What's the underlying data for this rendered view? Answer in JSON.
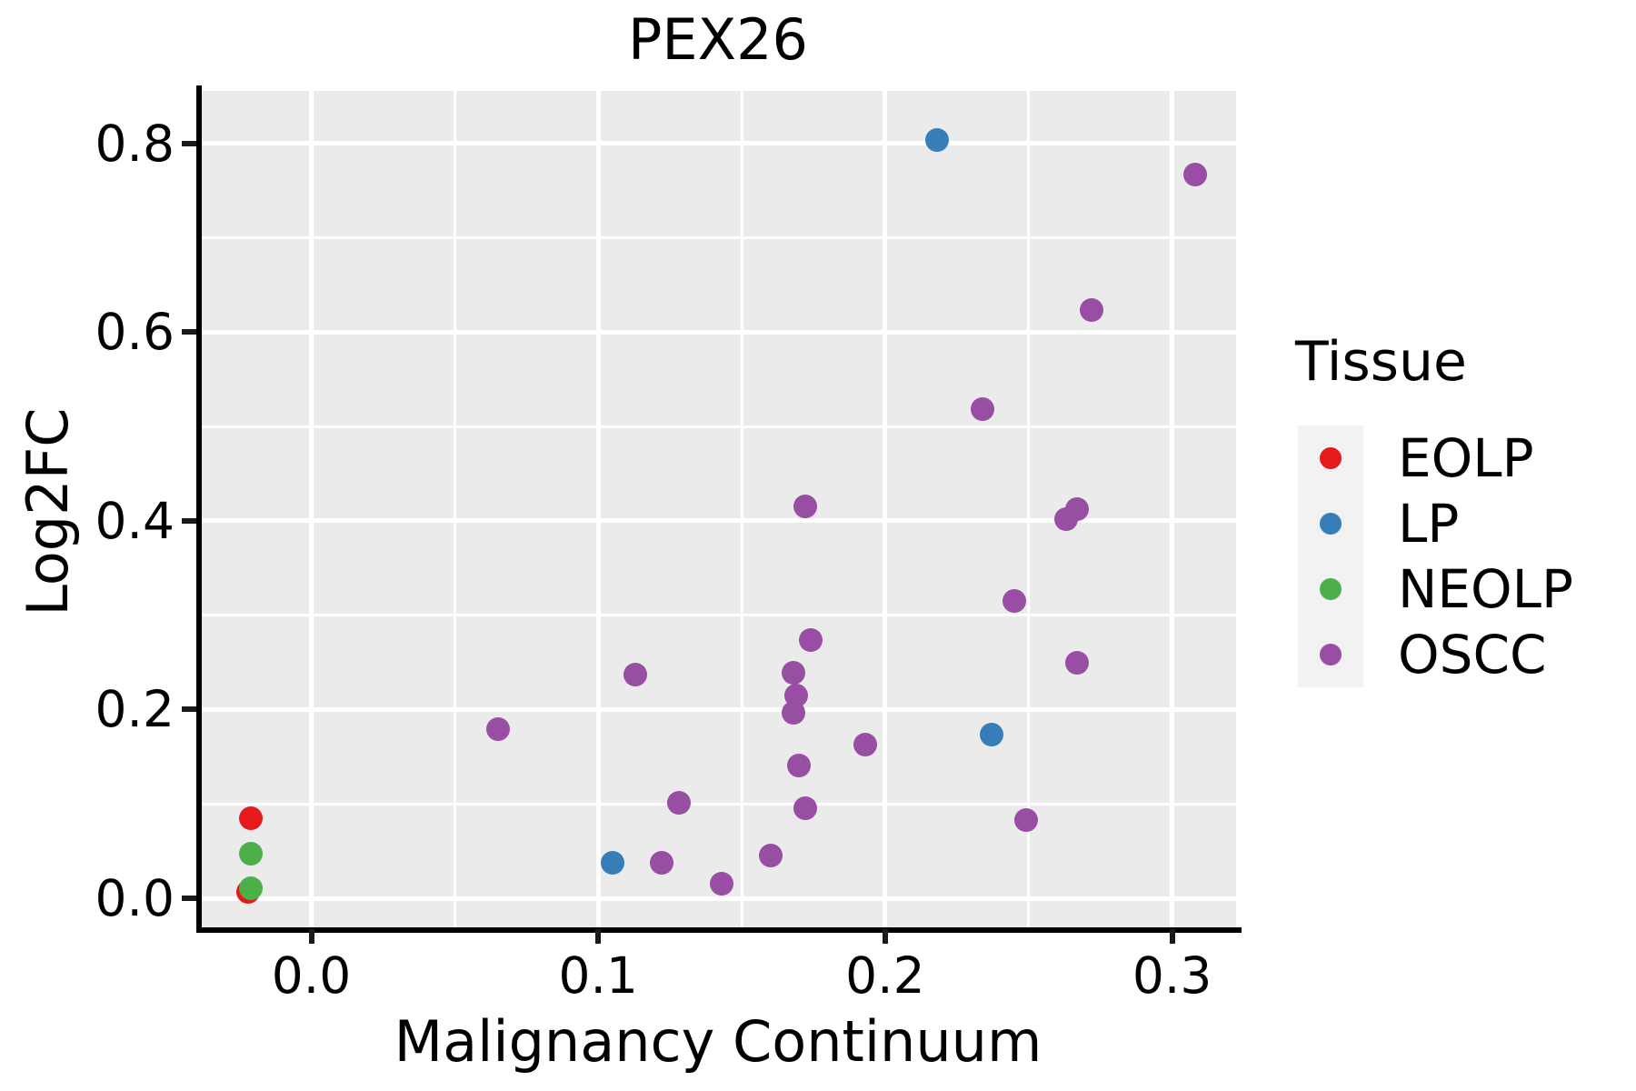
{
  "title": "PEX26",
  "legend": {
    "title": "Tissue",
    "entries": [
      {
        "label": "EOLP",
        "color": "#E41A1C"
      },
      {
        "label": "LP",
        "color": "#377EB8"
      },
      {
        "label": "NEOLP",
        "color": "#4DAF4A"
      },
      {
        "label": "OSCC",
        "color": "#984EA3"
      }
    ]
  },
  "colors": {
    "panel_background": "#EBEBEB",
    "gridline": "#FFFFFF",
    "axis": "#000000",
    "legend_key_background": "#F2F2F2",
    "text": "#000000"
  },
  "chart_data": {
    "type": "scatter",
    "title": "PEX26",
    "xlabel": "Malignancy Continuum",
    "ylabel": "Log2FC",
    "legend_title": "Tissue",
    "legend_position": "right",
    "grid": true,
    "xlim": [
      -0.038,
      0.322
    ],
    "ylim": [
      -0.03,
      0.856
    ],
    "x_ticks": [
      0.0,
      0.1,
      0.2,
      0.3
    ],
    "x_tick_labels": [
      "0.0",
      "0.1",
      "0.2",
      "0.3"
    ],
    "x_minor_ticks": [
      0.05,
      0.15,
      0.25
    ],
    "y_ticks": [
      0.0,
      0.2,
      0.4,
      0.6,
      0.8
    ],
    "y_tick_labels": [
      "0.0",
      "0.2",
      "0.4",
      "0.6",
      "0.8"
    ],
    "y_minor_ticks": [
      0.1,
      0.3,
      0.5,
      0.7
    ],
    "series": [
      {
        "name": "EOLP",
        "color": "#E41A1C",
        "points": [
          [
            -0.021,
            0.085
          ],
          [
            -0.022,
            0.007
          ]
        ]
      },
      {
        "name": "LP",
        "color": "#377EB8",
        "points": [
          [
            0.218,
            0.803
          ],
          [
            0.237,
            0.173
          ],
          [
            0.105,
            0.038
          ]
        ]
      },
      {
        "name": "NEOLP",
        "color": "#4DAF4A",
        "points": [
          [
            -0.021,
            0.047
          ],
          [
            -0.021,
            0.011
          ]
        ]
      },
      {
        "name": "OSCC",
        "color": "#984EA3",
        "points": [
          [
            0.308,
            0.767
          ],
          [
            0.272,
            0.623
          ],
          [
            0.234,
            0.518
          ],
          [
            0.172,
            0.415
          ],
          [
            0.263,
            0.402
          ],
          [
            0.267,
            0.412
          ],
          [
            0.245,
            0.315
          ],
          [
            0.267,
            0.25
          ],
          [
            0.174,
            0.274
          ],
          [
            0.113,
            0.237
          ],
          [
            0.168,
            0.239
          ],
          [
            0.169,
            0.215
          ],
          [
            0.168,
            0.197
          ],
          [
            0.193,
            0.163
          ],
          [
            0.17,
            0.141
          ],
          [
            0.128,
            0.101
          ],
          [
            0.172,
            0.095
          ],
          [
            0.065,
            0.179
          ],
          [
            0.122,
            0.038
          ],
          [
            0.143,
            0.015
          ],
          [
            0.16,
            0.045
          ],
          [
            0.249,
            0.083
          ]
        ]
      }
    ]
  }
}
